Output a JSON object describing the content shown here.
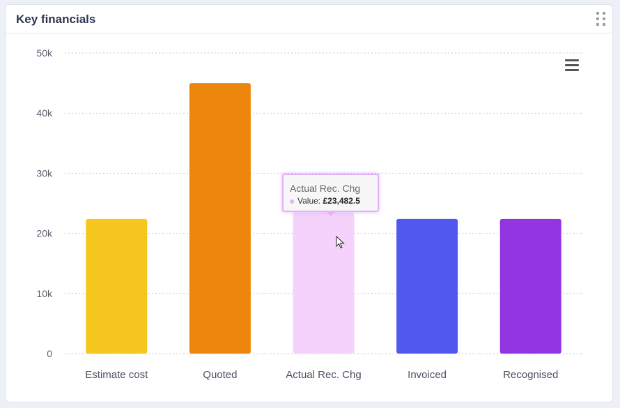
{
  "panel": {
    "title": "Key financials",
    "drag_icon": "drag-dots-icon",
    "menu_icon": "hamburger-menu-icon"
  },
  "chart_data": {
    "type": "bar",
    "categories": [
      "Estimate cost",
      "Quoted",
      "Actual Rec. Chg",
      "Invoiced",
      "Recognised"
    ],
    "values": [
      22400,
      45000,
      23482.5,
      22400,
      22400
    ],
    "colors": [
      "#f5c61d",
      "#ed860c",
      "#f5d2fb",
      "#5058ef",
      "#9234df"
    ],
    "ylim": [
      0,
      50000
    ],
    "yticks": [
      "0",
      "10k",
      "20k",
      "30k",
      "40k",
      "50k"
    ],
    "grid": true,
    "xlabel": "",
    "ylabel": ""
  },
  "tooltip": {
    "title": "Actual Rec. Chg",
    "label": "Value:",
    "value": "£23,482.5",
    "dot_color": "#e2b3f5"
  }
}
